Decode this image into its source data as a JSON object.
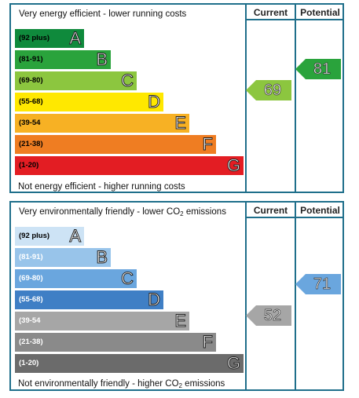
{
  "energy": {
    "top_text": "Very energy efficient - lower running costs",
    "bottom_text": "Not energy efficient - higher running costs",
    "col_current": "Current",
    "col_potential": "Potential",
    "bands": [
      {
        "range": "(92 plus)",
        "letter": "A",
        "color": "#0f8a3c"
      },
      {
        "range": "(81-91)",
        "letter": "B",
        "color": "#2aa33c"
      },
      {
        "range": "(69-80)",
        "letter": "C",
        "color": "#8cc63f"
      },
      {
        "range": "(55-68)",
        "letter": "D",
        "color": "#ffe800"
      },
      {
        "range": "(39-54",
        "letter": "E",
        "color": "#f7b124"
      },
      {
        "range": "(21-38)",
        "letter": "F",
        "color": "#ef7d22"
      },
      {
        "range": "(1-20)",
        "letter": "G",
        "color": "#e31d23"
      }
    ],
    "current": {
      "value": "69",
      "color": "#8cc63f"
    },
    "potential": {
      "value": "81",
      "color": "#2aa33c"
    }
  },
  "env": {
    "top_text_pre": "Very environmentally friendly - lower CO",
    "top_text_sub": "2",
    "top_text_post": " emissions",
    "bottom_text_pre": "Not environmentally friendly - higher CO",
    "bottom_text_sub": "2",
    "bottom_text_post": " emissions",
    "col_current": "Current",
    "col_potential": "Potential",
    "bands": [
      {
        "range": "(92 plus)",
        "letter": "A",
        "color": "#cde3f5"
      },
      {
        "range": "(81-91)",
        "letter": "B",
        "color": "#98c4ea"
      },
      {
        "range": "(69-80)",
        "letter": "C",
        "color": "#6aa6de"
      },
      {
        "range": "(55-68)",
        "letter": "D",
        "color": "#3f7fc5"
      },
      {
        "range": "(39-54",
        "letter": "E",
        "color": "#a6a6a6"
      },
      {
        "range": "(21-38)",
        "letter": "F",
        "color": "#8a8a8a"
      },
      {
        "range": "(1-20)",
        "letter": "G",
        "color": "#6b6b6b"
      }
    ],
    "current": {
      "value": "52",
      "color": "#a6a6a6"
    },
    "potential": {
      "value": "71",
      "color": "#6aa6de"
    }
  }
}
